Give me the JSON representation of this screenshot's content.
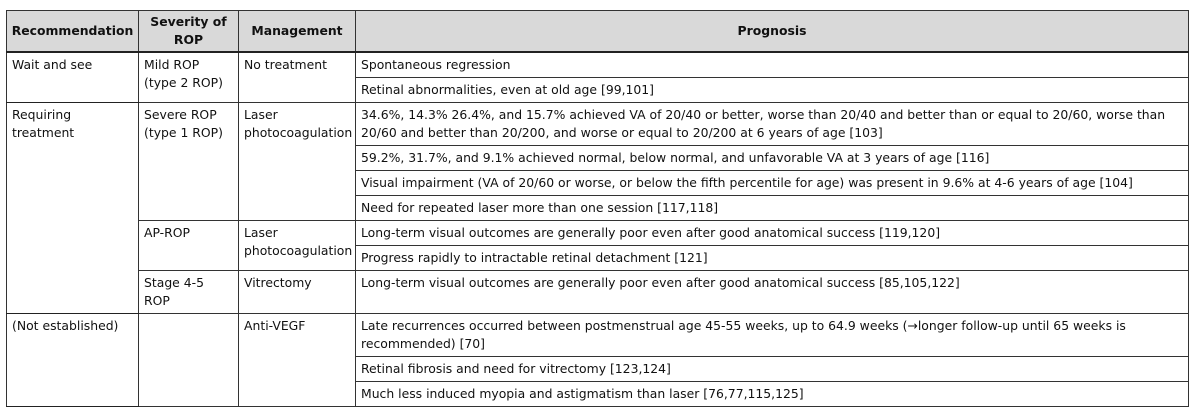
{
  "table": {
    "headers": [
      "Recommendation",
      "Severity of ROP",
      "Management",
      "Prognosis"
    ],
    "groups": [
      {
        "recommendation": "Wait and see",
        "sub": [
          {
            "severity": "Mild ROP (type 2 ROP)",
            "management": "No treatment",
            "prognoses": [
              "Spontaneous regression",
              "Retinal abnormalities, even at old age [99,101]"
            ]
          }
        ]
      },
      {
        "recommendation": "Requiring treatment",
        "sub": [
          {
            "severity": "Severe ROP (type 1 ROP)",
            "management": "Laser photocoagulation",
            "prognoses": [
              "34.6%, 14.3% 26.4%, and 15.7% achieved VA of 20/40 or better, worse than 20/40 and better than or equal to 20/60, worse than 20/60 and better than 20/200, and worse or equal to 20/200 at 6 years of age [103]",
              "59.2%, 31.7%, and 9.1% achieved normal, below normal, and unfavorable VA at 3 years of age [116]",
              "Visual impairment (VA of 20/60 or worse, or below the fifth percentile for age) was present in 9.6% at 4-6 years of age [104]",
              "Need for repeated laser more than one session [117,118]"
            ]
          },
          {
            "severity": "AP-ROP",
            "management": "Laser photocoagulation",
            "prognoses": [
              "Long-term visual outcomes are generally poor even after good anatomical success [119,120]",
              "Progress rapidly to intractable retinal detachment [121]"
            ]
          },
          {
            "severity": "Stage 4-5 ROP",
            "management": "Vitrectomy",
            "prognoses": [
              "Long-term visual outcomes are generally poor even after good anatomical success [85,105,122]"
            ]
          }
        ]
      },
      {
        "recommendation": "(Not established)",
        "sub": [
          {
            "severity": "",
            "management": "Anti-VEGF",
            "prognoses": [
              "Late recurrences occurred between postmenstrual age 45-55 weeks, up to 64.9 weeks (→longer follow-up until 65 weeks is recommended) [70]",
              "Retinal fibrosis and need for vitrectomy [123,124]",
              "Much less induced myopia and astigmatism than laser [76,77,115,125]"
            ]
          }
        ]
      }
    ]
  }
}
